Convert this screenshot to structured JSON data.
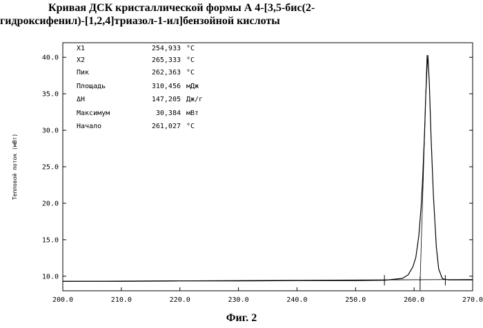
{
  "figure": {
    "title_line1": "Кривая ДСК кристаллической формы А 4-[3,5-бис(2-",
    "title_line2": "гидроксифенил)-[1,2,4]триазол-1-ил]бензойной кислоты",
    "caption": "Фиг. 2"
  },
  "chart_data": {
    "type": "line",
    "title": "Кривая ДСК кристаллической формы А 4-[3,5-бис(2-гидроксифенил)-[1,2,4]триазол-1-ил]бензойной кислоты",
    "xlabel": "",
    "ylabel": "Тепловой поток (мВт)",
    "xlim": [
      200,
      270
    ],
    "ylim": [
      8,
      42
    ],
    "x_ticks": [
      200,
      210,
      220,
      230,
      240,
      250,
      260,
      270
    ],
    "x_tick_labels": [
      "200.0",
      "210.0",
      "220.0",
      "230.0",
      "240.0",
      "250.0",
      "260.0",
      "270.0"
    ],
    "y_ticks": [
      10,
      15,
      20,
      25,
      30,
      35,
      40
    ],
    "y_tick_labels": [
      "10.0",
      "15.0",
      "20.0",
      "25.0",
      "30.0",
      "35.0",
      "40.0"
    ],
    "grid": false,
    "series": [
      {
        "x": [
          200,
          210,
          220,
          230,
          240,
          250,
          255,
          258,
          259,
          259.8,
          260.3,
          260.8,
          261.2,
          261.5,
          261.8,
          262.0,
          262.2,
          262.36,
          262.6,
          262.9,
          263.3,
          263.8,
          264.2,
          264.8,
          265.3,
          266,
          270
        ],
        "y": [
          9.3,
          9.3,
          9.35,
          9.35,
          9.4,
          9.4,
          9.45,
          9.7,
          10.2,
          11.3,
          12.6,
          15.5,
          19.5,
          24.0,
          30.0,
          35.0,
          38.5,
          40.3,
          36.5,
          29.0,
          21.0,
          14.0,
          11.0,
          9.7,
          9.55,
          9.5,
          9.5
        ]
      },
      {
        "x": [
          200,
          270
        ],
        "y": [
          9.3,
          9.55
        ]
      }
    ],
    "markers_x": [
      254.933,
      261.027,
      265.333
    ],
    "annotations": [
      {
        "label": "X1",
        "value": "254,933",
        "unit": "°C"
      },
      {
        "label": "X2",
        "value": "265,333",
        "unit": "°C"
      },
      {
        "label": "Пик",
        "value": "262,363",
        "unit": "°C"
      },
      {
        "label": "Площадь",
        "value": "310,456",
        "unit": "мДж"
      },
      {
        "label": "ΔH",
        "value": "147,205",
        "unit": "Дж/г"
      },
      {
        "label": "Максимум",
        "value": "30,384",
        "unit": "мВт"
      },
      {
        "label": "Начало",
        "value": "261,027",
        "unit": "°C"
      }
    ]
  }
}
